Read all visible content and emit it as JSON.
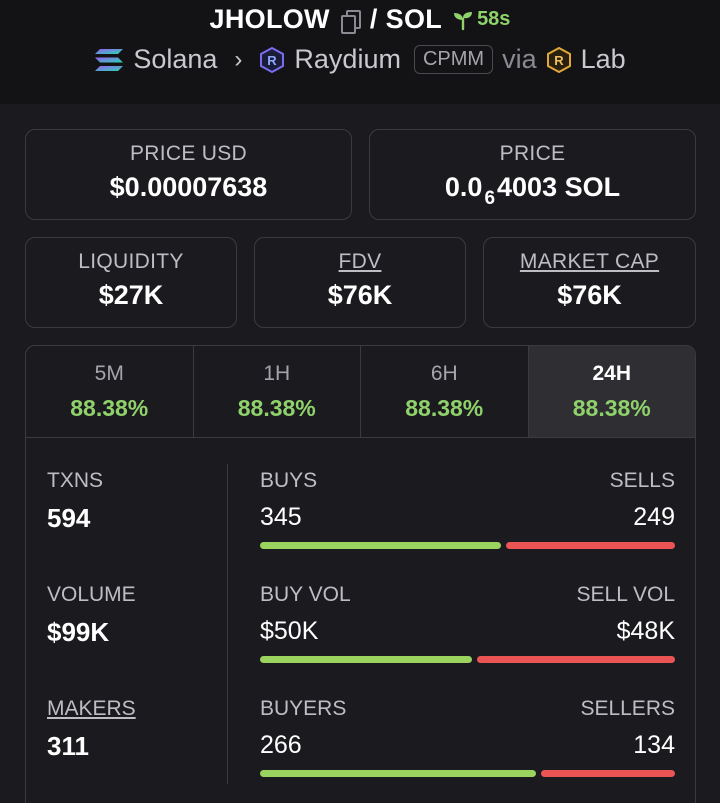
{
  "header": {
    "token": "JHOLOW",
    "separator": "/",
    "quote": "SOL",
    "age": "58s",
    "chain": "Solana",
    "dex": "Raydium",
    "pool_type": "CPMM",
    "via": "via",
    "launchpad": "Lab",
    "icons": [
      "copy-icon",
      "sprout-icon",
      "solana-icon",
      "raydium-icon",
      "lab-icon",
      "chevron-right-icon"
    ]
  },
  "prices": {
    "usd_label": "PRICE USD",
    "usd_value": "$0.00007638",
    "native_label": "PRICE",
    "native_prefix": "0.0",
    "native_zeros": "6",
    "native_digits": "4003 SOL"
  },
  "metrics": [
    {
      "label": "LIQUIDITY",
      "value": "$27K"
    },
    {
      "label": "FDV",
      "value": "$76K"
    },
    {
      "label": "MARKET CAP",
      "value": "$76K"
    }
  ],
  "tabs": [
    {
      "label": "5M",
      "change": "88.38%"
    },
    {
      "label": "1H",
      "change": "88.38%"
    },
    {
      "label": "6H",
      "change": "88.38%"
    },
    {
      "label": "24H",
      "change": "88.38%",
      "active": true
    }
  ],
  "stats": {
    "txns": {
      "label": "TXNS",
      "value": "594",
      "buys_label": "BUYS",
      "buys": "345",
      "sells_label": "SELLS",
      "sells": "249",
      "buy_share": 0.581
    },
    "volume": {
      "label": "VOLUME",
      "value": "$99K",
      "buys_label": "BUY VOL",
      "buys": "$50K",
      "sells_label": "SELL VOL",
      "sells": "$48K",
      "buy_share": 0.51
    },
    "makers": {
      "label": "MAKERS",
      "value": "311",
      "buys_label": "BUYERS",
      "buys": "266",
      "sells_label": "SELLERS",
      "sells": "134",
      "buy_share": 0.665
    }
  },
  "colors": {
    "accent_green": "#8fd16a",
    "buy_bar": "#9ad35e",
    "sell_bar": "#ea5454",
    "background": "#1b1b1f"
  }
}
